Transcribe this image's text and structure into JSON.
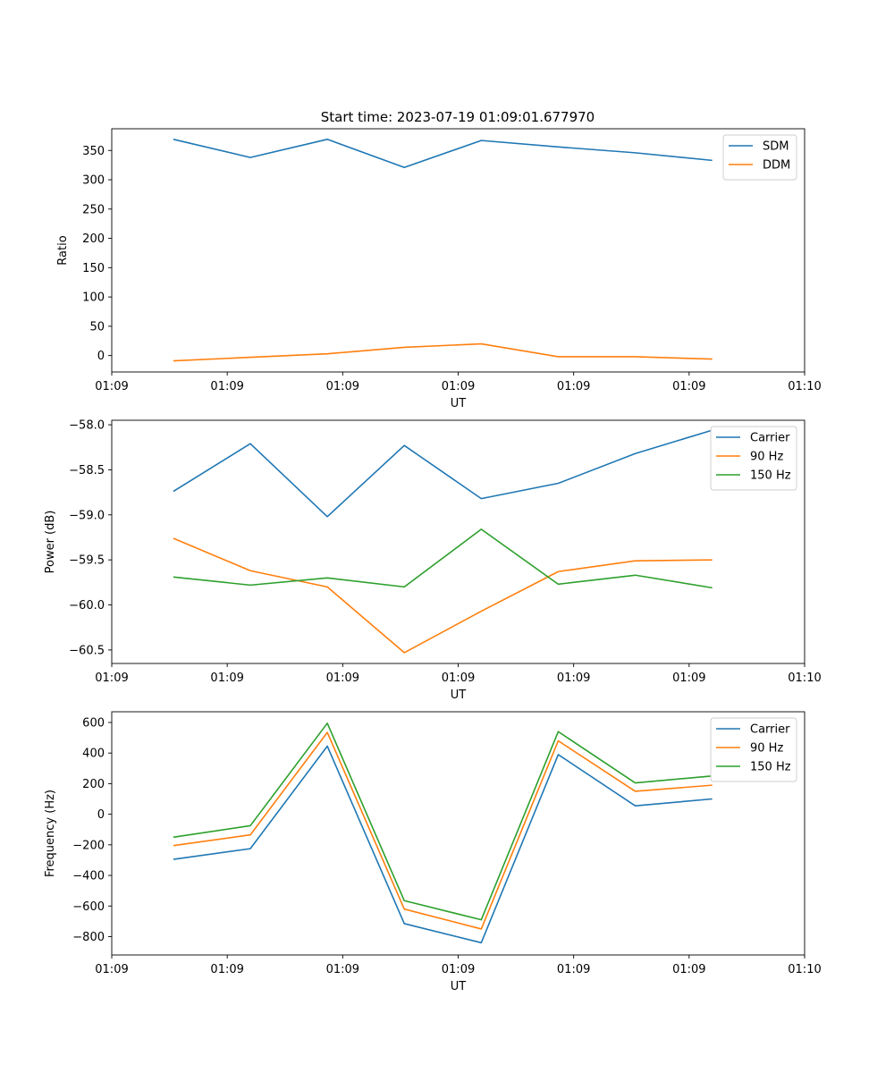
{
  "figure_title": "Start time: 2023-07-19 01:09:01.677970",
  "chart_data": [
    {
      "type": "line",
      "id": "ratio",
      "ylabel": "Ratio",
      "xlabel": "UT",
      "xlim": [
        0,
        9
      ],
      "ylim": [
        -28,
        387
      ],
      "yticks": [
        0,
        50,
        100,
        150,
        200,
        250,
        300,
        350
      ],
      "x": [
        0.8,
        1.8,
        2.8,
        3.8,
        4.8,
        5.8,
        6.8,
        7.8
      ],
      "xticks": [
        0,
        1.5,
        3,
        4.5,
        6,
        7.5,
        9
      ],
      "xtick_labels": [
        "01:09",
        "01:09",
        "01:09",
        "01:09",
        "01:09",
        "01:09",
        "01:10"
      ],
      "legend_position": "top-right",
      "series": [
        {
          "name": "SDM",
          "color": "#1f77b4",
          "values": [
            369,
            338,
            369,
            321,
            367,
            356,
            346,
            333
          ]
        },
        {
          "name": "DDM",
          "color": "#ff7f0e",
          "values": [
            -9,
            -3,
            3,
            14,
            20,
            -2,
            -2,
            -6
          ]
        }
      ]
    },
    {
      "type": "line",
      "id": "power",
      "ylabel": "Power (dB)",
      "xlabel": "UT",
      "xlim": [
        0,
        9
      ],
      "ylim": [
        -60.65,
        -57.95
      ],
      "yticks": [
        -60.5,
        -60.0,
        -59.5,
        -59.0,
        -58.5,
        -58.0
      ],
      "x": [
        0.8,
        1.8,
        2.8,
        3.8,
        4.8,
        5.8,
        6.8,
        7.8
      ],
      "xticks": [
        0,
        1.5,
        3,
        4.5,
        6,
        7.5,
        9
      ],
      "xtick_labels": [
        "01:09",
        "01:09",
        "01:09",
        "01:09",
        "01:09",
        "01:09",
        "01:10"
      ],
      "legend_position": "top-right",
      "series": [
        {
          "name": "Carrier",
          "color": "#1f77b4",
          "values": [
            -58.74,
            -58.21,
            -59.02,
            -58.23,
            -58.82,
            -58.65,
            -58.32,
            -58.06
          ]
        },
        {
          "name": "90 Hz",
          "color": "#ff7f0e",
          "values": [
            -59.26,
            -59.62,
            -59.8,
            -60.53,
            -60.07,
            -59.63,
            -59.51,
            -59.5
          ]
        },
        {
          "name": "150 Hz",
          "color": "#2ca02c",
          "values": [
            -59.69,
            -59.78,
            -59.7,
            -59.8,
            -59.16,
            -59.77,
            -59.67,
            -59.81
          ]
        }
      ]
    },
    {
      "type": "line",
      "id": "frequency",
      "ylabel": "Frequency (Hz)",
      "xlabel": "UT",
      "xlim": [
        0,
        9
      ],
      "ylim": [
        -920,
        670
      ],
      "yticks": [
        -800,
        -600,
        -400,
        -200,
        0,
        200,
        400,
        600
      ],
      "x": [
        0.8,
        1.8,
        2.8,
        3.8,
        4.8,
        5.8,
        6.8,
        7.8
      ],
      "xticks": [
        0,
        1.5,
        3,
        4.5,
        6,
        7.5,
        9
      ],
      "xtick_labels": [
        "01:09",
        "01:09",
        "01:09",
        "01:09",
        "01:09",
        "01:09",
        "01:10"
      ],
      "legend_position": "top-right",
      "series": [
        {
          "name": "Carrier",
          "color": "#1f77b4",
          "values": [
            -295,
            -225,
            445,
            -715,
            -840,
            390,
            55,
            100
          ]
        },
        {
          "name": "90 Hz",
          "color": "#ff7f0e",
          "values": [
            -205,
            -135,
            535,
            -620,
            -750,
            480,
            150,
            190
          ]
        },
        {
          "name": "150 Hz",
          "color": "#2ca02c",
          "values": [
            -150,
            -75,
            595,
            -565,
            -690,
            540,
            205,
            250
          ]
        }
      ]
    }
  ]
}
